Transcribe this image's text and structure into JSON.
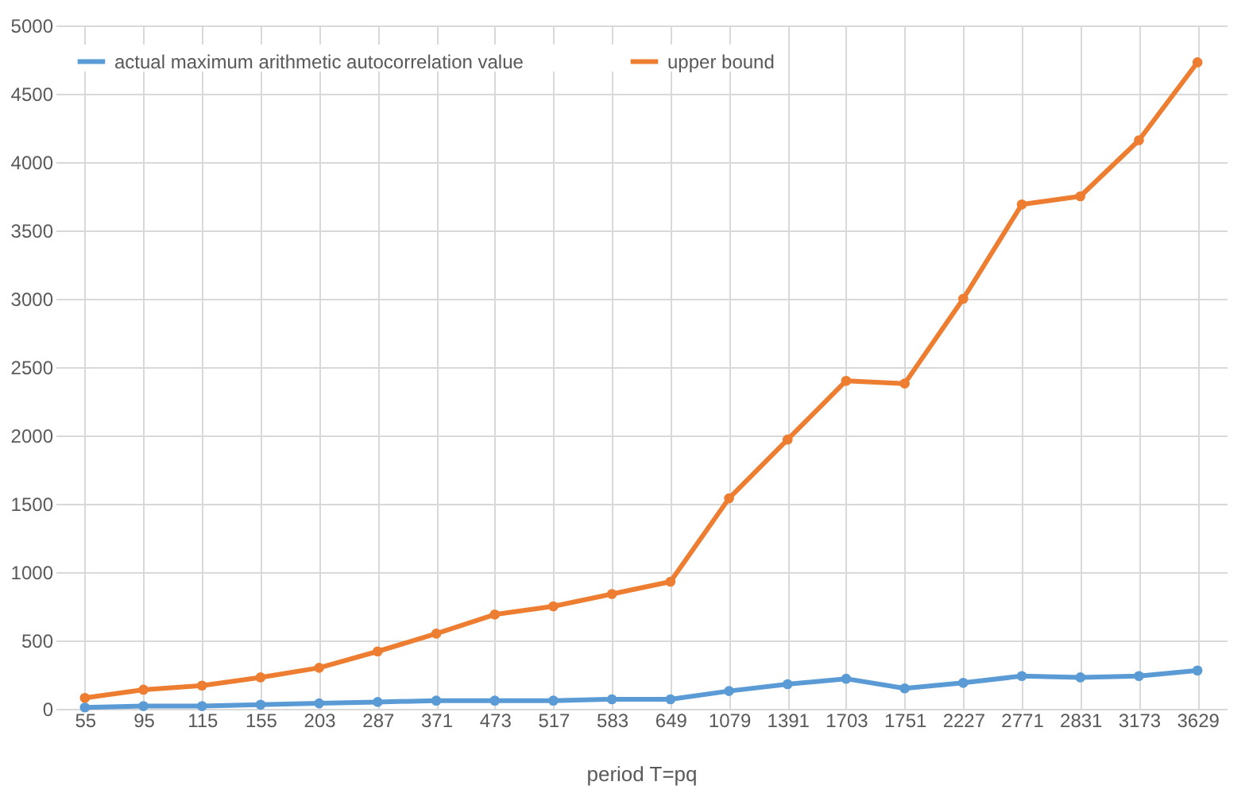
{
  "chart_data": {
    "type": "line",
    "xlabel": "period T=pq",
    "categories": [
      "55",
      "95",
      "115",
      "155",
      "203",
      "287",
      "371",
      "473",
      "517",
      "583",
      "649",
      "1079",
      "1391",
      "1703",
      "1751",
      "2227",
      "2771",
      "2831",
      "3173",
      "3629"
    ],
    "series": [
      {
        "name": "actual maximum arithmetic autocorrelation value",
        "color": "#5b9bd5",
        "values": [
          10,
          20,
          20,
          30,
          40,
          50,
          60,
          60,
          60,
          70,
          70,
          130,
          180,
          220,
          150,
          190,
          240,
          230,
          240,
          280
        ]
      },
      {
        "name": "upper bound",
        "color": "#ed7d31",
        "values": [
          80,
          140,
          170,
          230,
          300,
          420,
          550,
          690,
          750,
          840,
          930,
          1540,
          1970,
          2400,
          2380,
          3000,
          3690,
          3750,
          4160,
          4730
        ]
      }
    ],
    "ylim": [
      0,
      5000
    ],
    "yticks": [
      0,
      500,
      1000,
      1500,
      2000,
      2500,
      3000,
      3500,
      4000,
      4500,
      5000
    ],
    "grid": true,
    "legend": "top left",
    "marker": "circle",
    "line_style": "solid"
  }
}
